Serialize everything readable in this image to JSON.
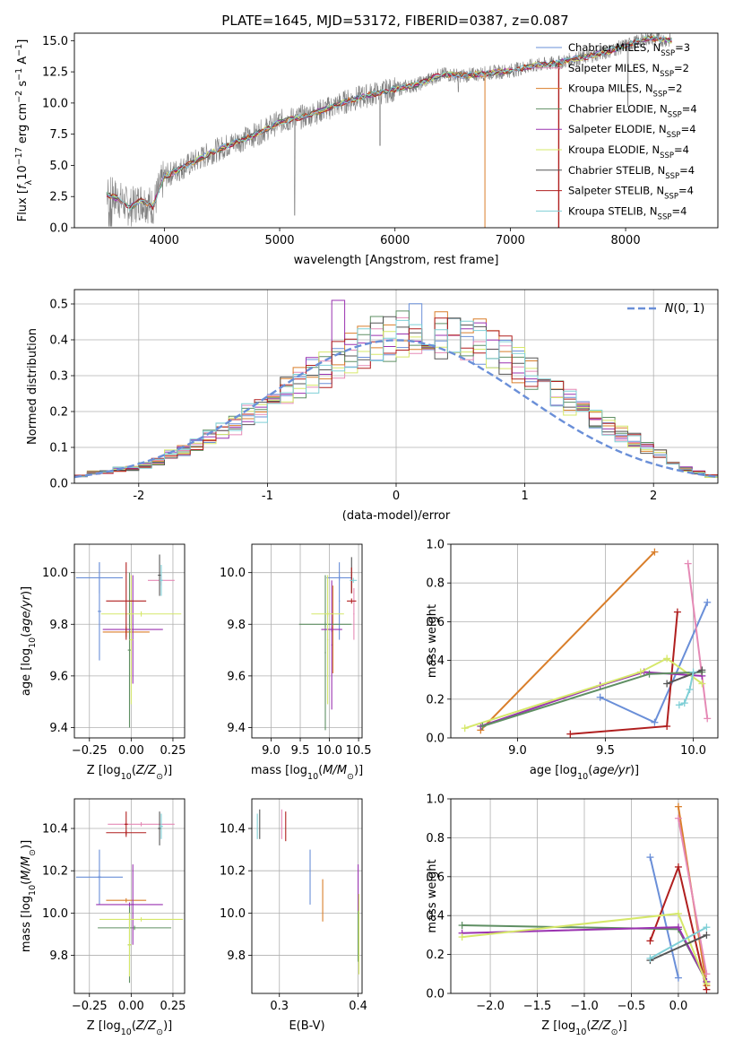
{
  "figure_title": "PLATE=1645, MJD=53172, FIBERID=0387, z=0.087",
  "colors": {
    "Chabrier MILES": "#6a8fd8",
    "Salpeter MILES": "#e58ab6",
    "Kroupa MILES": "#d97e2a",
    "Chabrier ELODIE": "#5f8f63",
    "Salpeter ELODIE": "#9a32b0",
    "Kroupa ELODIE": "#d6e86a",
    "Chabrier STELIB": "#555555",
    "Salpeter STELIB": "#b01f1f",
    "Kroupa STELIB": "#7fcfd6",
    "data": "#808080",
    "gaussian": "#6a8fd8"
  },
  "chart_data": [
    {
      "id": "spectrum",
      "type": "line",
      "title": "PLATE=1645, MJD=53172, FIBERID=0387, z=0.087",
      "xlabel": "wavelength [Angstrom, rest frame]",
      "ylabel": "Flux [f_λ 10^-17 erg cm^-2 s^-1 A^-1]",
      "xlim": [
        3220,
        8800
      ],
      "ylim": [
        0,
        15.6
      ],
      "xticks": [
        4000,
        5000,
        6000,
        7000,
        8000
      ],
      "yticks": [
        0.0,
        2.5,
        5.0,
        7.5,
        10.0,
        12.5,
        15.0
      ],
      "continuum": {
        "x": [
          3500,
          3600,
          3700,
          3800,
          3900,
          4000,
          4200,
          4400,
          4600,
          4800,
          5000,
          5200,
          5400,
          5600,
          5800,
          6000,
          6200,
          6400,
          6600,
          6800,
          7000,
          7200,
          7400,
          7600,
          7800,
          8000,
          8200,
          8400
        ],
        "y": [
          2.7,
          2.3,
          1.6,
          2.2,
          1.7,
          4.1,
          5.0,
          6.0,
          6.8,
          7.5,
          8.5,
          8.9,
          9.5,
          10.2,
          10.7,
          11.1,
          11.5,
          12.3,
          12.2,
          12.4,
          12.6,
          13.0,
          13.2,
          13.6,
          14.0,
          14.6,
          15.2,
          15.0
        ]
      },
      "legend": [
        {
          "label": "Chabrier MILES, N",
          "sub": "SSP",
          "tail": "=3"
        },
        {
          "label": "Salpeter MILES, N",
          "sub": "SSP",
          "tail": "=2"
        },
        {
          "label": "Kroupa MILES, N",
          "sub": "SSP",
          "tail": "=2"
        },
        {
          "label": "Chabrier ELODIE, N",
          "sub": "SSP",
          "tail": "=4"
        },
        {
          "label": "Salpeter ELODIE, N",
          "sub": "SSP",
          "tail": "=4"
        },
        {
          "label": "Kroupa ELODIE, N",
          "sub": "SSP",
          "tail": "=4"
        },
        {
          "label": "Chabrier STELIB, N",
          "sub": "SSP",
          "tail": "=4"
        },
        {
          "label": "Salpeter STELIB, N",
          "sub": "SSP",
          "tail": "=4"
        },
        {
          "label": "Kroupa STELIB, N",
          "sub": "SSP",
          "tail": "=4"
        }
      ]
    },
    {
      "id": "residuals",
      "type": "step",
      "xlabel": "(data-model)/error",
      "ylabel": "Normed distribution",
      "xlim": [
        -2.5,
        2.5
      ],
      "ylim": [
        0,
        0.54
      ],
      "xticks": [
        -2,
        -1,
        0,
        1,
        2
      ],
      "yticks": [
        0.0,
        0.1,
        0.2,
        0.3,
        0.4,
        0.5
      ],
      "bin_width": 0.1,
      "base_hist": [
        0.02,
        0.03,
        0.03,
        0.04,
        0.04,
        0.05,
        0.06,
        0.08,
        0.09,
        0.11,
        0.13,
        0.15,
        0.16,
        0.19,
        0.2,
        0.22,
        0.26,
        0.28,
        0.3,
        0.32,
        0.34,
        0.36,
        0.38,
        0.4,
        0.41,
        0.42,
        0.43,
        0.43,
        0.42,
        0.41,
        0.4,
        0.39,
        0.37,
        0.35,
        0.33,
        0.31,
        0.28,
        0.26,
        0.23,
        0.2,
        0.18,
        0.16,
        0.14,
        0.12,
        0.1,
        0.08,
        0.06,
        0.04,
        0.03,
        0.02
      ],
      "gaussian_label": "N(0,1)"
    },
    {
      "id": "age_vs_Z",
      "type": "errorbar",
      "xlabel": "Z [log10(Z/Z⊙)]",
      "ylabel": "age [log10(age/yr)]",
      "xlim": [
        -0.34,
        0.32
      ],
      "ylim": [
        9.36,
        10.11
      ],
      "xticks": [
        -0.25,
        0.0,
        0.25
      ],
      "xtick_labels": [
        "−0.25",
        "0.00",
        "0.25"
      ],
      "yticks": [
        9.4,
        9.6,
        9.8,
        10.0
      ],
      "points": [
        {
          "model": "Chabrier MILES",
          "x": -0.19,
          "y": 9.98,
          "xerr": 0.14,
          "yerr": 0.06
        },
        {
          "model": "Chabrier MILES",
          "x": -0.19,
          "y": 9.85,
          "xerr": 0.01,
          "yerr": 0.19
        },
        {
          "model": "Salpeter MILES",
          "x": 0.18,
          "y": 9.97,
          "xerr": 0.08,
          "yerr": 0.02
        },
        {
          "model": "Kroupa MILES",
          "x": -0.03,
          "y": 9.77,
          "xerr": 0.14,
          "yerr": 0.02
        },
        {
          "model": "Chabrier ELODIE",
          "x": -0.01,
          "y": 9.7,
          "xerr": 0.01,
          "yerr": 0.3
        },
        {
          "model": "Salpeter ELODIE",
          "x": 0.01,
          "y": 9.78,
          "xerr": 0.18,
          "yerr": 0.21
        },
        {
          "model": "Kroupa ELODIE",
          "x": 0.06,
          "y": 9.84,
          "xerr": 0.24,
          "yerr": 0.01
        },
        {
          "model": "Kroupa ELODIE",
          "x": 0.0,
          "y": 9.74,
          "xerr": 0.01,
          "yerr": 0.25
        },
        {
          "model": "Chabrier STELIB",
          "x": 0.17,
          "y": 9.99,
          "xerr": 0.01,
          "yerr": 0.08
        },
        {
          "model": "Salpeter STELIB",
          "x": -0.03,
          "y": 9.89,
          "xerr": 0.12,
          "yerr": 0.15
        },
        {
          "model": "Kroupa STELIB",
          "x": 0.18,
          "y": 9.97,
          "xerr": 0.01,
          "yerr": 0.06
        }
      ]
    },
    {
      "id": "age_vs_mass",
      "type": "errorbar",
      "xlabel": "mass [log10(M/M⊙)]",
      "ylabel": "",
      "xlim": [
        8.67,
        10.56
      ],
      "ylim": [
        9.36,
        10.11
      ],
      "xticks": [
        9.0,
        9.5,
        10.0,
        10.5
      ],
      "xtick_labels": [
        "9.0",
        "9.5",
        "10.0",
        "10.5"
      ],
      "yticks": [
        9.4,
        9.6,
        9.8,
        10.0
      ],
      "points": [
        {
          "model": "Chabrier MILES",
          "x": 10.17,
          "y": 9.98,
          "xerr": 0.22,
          "yerr": 0.01
        },
        {
          "model": "Chabrier MILES",
          "x": 10.17,
          "y": 9.89,
          "xerr": 0.01,
          "yerr": 0.15
        },
        {
          "model": "Salpeter MILES",
          "x": 10.42,
          "y": 9.84,
          "xerr": 0.01,
          "yerr": 0.1
        },
        {
          "model": "Kroupa MILES",
          "x": 10.06,
          "y": 9.78,
          "xerr": 0.01,
          "yerr": 0.17
        },
        {
          "model": "Chabrier ELODIE",
          "x": 9.93,
          "y": 9.8,
          "xerr": 0.45,
          "yerr": 0.01
        },
        {
          "model": "Chabrier ELODIE",
          "x": 9.93,
          "y": 9.69,
          "xerr": 0.01,
          "yerr": 0.3
        },
        {
          "model": "Salpeter ELODIE",
          "x": 10.04,
          "y": 9.78,
          "xerr": 0.18,
          "yerr": 0.01
        },
        {
          "model": "Salpeter ELODIE",
          "x": 10.04,
          "y": 9.72,
          "xerr": 0.01,
          "yerr": 0.25
        },
        {
          "model": "Kroupa ELODIE",
          "x": 9.97,
          "y": 9.84,
          "xerr": 0.28,
          "yerr": 0.01
        },
        {
          "model": "Kroupa ELODIE",
          "x": 9.97,
          "y": 9.74,
          "xerr": 0.01,
          "yerr": 0.25
        },
        {
          "model": "Chabrier STELIB",
          "x": 10.38,
          "y": 9.99,
          "xerr": 0.01,
          "yerr": 0.07
        },
        {
          "model": "Salpeter STELIB",
          "x": 10.38,
          "y": 9.89,
          "xerr": 0.08,
          "yerr": 0.01
        },
        {
          "model": "Salpeter STELIB",
          "x": 10.38,
          "y": 9.97,
          "xerr": 0.01,
          "yerr": 0.05
        },
        {
          "model": "Kroupa STELIB",
          "x": 10.41,
          "y": 9.97,
          "xerr": 0.06,
          "yerr": 0.01
        }
      ]
    },
    {
      "id": "massweight_vs_age",
      "type": "line",
      "xlabel": "age [log10(age/yr)]",
      "ylabel": "mass weight",
      "xlim": [
        8.62,
        10.14
      ],
      "ylim": [
        0,
        1.0
      ],
      "xticks": [
        9.0,
        9.5,
        10.0
      ],
      "yticks": [
        0.0,
        0.2,
        0.4,
        0.6,
        0.8,
        1.0
      ],
      "series": [
        {
          "model": "Kroupa MILES",
          "x": [
            8.79,
            9.78
          ],
          "y": [
            0.04,
            0.96
          ]
        },
        {
          "model": "Chabrier MILES",
          "x": [
            9.47,
            9.78,
            10.08
          ],
          "y": [
            0.21,
            0.08,
            0.7
          ]
        },
        {
          "model": "Salpeter MILES",
          "x": [
            9.97,
            10.08
          ],
          "y": [
            0.9,
            0.1
          ]
        },
        {
          "model": "Salpeter STELIB",
          "x": [
            9.3,
            9.85,
            9.91
          ],
          "y": [
            0.02,
            0.06,
            0.65
          ]
        },
        {
          "model": "Salpeter ELODIE",
          "x": [
            8.79,
            9.47,
            9.72,
            10.05
          ],
          "y": [
            0.06,
            0.27,
            0.34,
            0.32
          ]
        },
        {
          "model": "Kroupa ELODIE",
          "x": [
            8.7,
            9.7,
            9.85,
            10.05
          ],
          "y": [
            0.05,
            0.34,
            0.41,
            0.28
          ]
        },
        {
          "model": "Chabrier ELODIE",
          "x": [
            8.8,
            9.75,
            10.05
          ],
          "y": [
            0.06,
            0.33,
            0.34
          ]
        },
        {
          "model": "Chabrier STELIB",
          "x": [
            9.85,
            10.05
          ],
          "y": [
            0.28,
            0.35
          ]
        },
        {
          "model": "Kroupa STELIB",
          "x": [
            9.92,
            9.95,
            9.98,
            10.0
          ],
          "y": [
            0.17,
            0.18,
            0.25,
            0.34
          ]
        }
      ]
    },
    {
      "id": "mass_vs_Z",
      "type": "errorbar",
      "xlabel": "Z [log10(Z/Z⊙)]",
      "ylabel": "mass [log10(M/M⊙)]",
      "xlim": [
        -0.34,
        0.32
      ],
      "ylim": [
        9.62,
        10.54
      ],
      "xticks": [
        -0.25,
        0.0,
        0.25
      ],
      "xtick_labels": [
        "−0.25",
        "0.00",
        "0.25"
      ],
      "yticks": [
        9.8,
        10.0,
        10.2,
        10.4
      ],
      "points": [
        {
          "model": "Chabrier MILES",
          "x": -0.19,
          "y": 10.17,
          "xerr": 0.14,
          "yerr": 0.01
        },
        {
          "model": "Chabrier MILES",
          "x": -0.19,
          "y": 10.17,
          "xerr": 0.01,
          "yerr": 0.13
        },
        {
          "model": "Salpeter MILES",
          "x": 0.06,
          "y": 10.42,
          "xerr": 0.2,
          "yerr": 0.01
        },
        {
          "model": "Kroupa MILES",
          "x": -0.03,
          "y": 10.06,
          "xerr": 0.12,
          "yerr": 0.01
        },
        {
          "model": "Chabrier ELODIE",
          "x": 0.02,
          "y": 9.93,
          "xerr": 0.22,
          "yerr": 0.01
        },
        {
          "model": "Chabrier ELODIE",
          "x": -0.01,
          "y": 9.85,
          "xerr": 0.01,
          "yerr": 0.18
        },
        {
          "model": "Salpeter ELODIE",
          "x": -0.01,
          "y": 10.04,
          "xerr": 0.2,
          "yerr": 0.01
        },
        {
          "model": "Salpeter ELODIE",
          "x": 0.01,
          "y": 10.04,
          "xerr": 0.01,
          "yerr": 0.19
        },
        {
          "model": "Kroupa ELODIE",
          "x": 0.06,
          "y": 9.97,
          "xerr": 0.25,
          "yerr": 0.01
        },
        {
          "model": "Kroupa ELODIE",
          "x": -0.01,
          "y": 9.85,
          "xerr": 0.01,
          "yerr": 0.15
        },
        {
          "model": "Chabrier STELIB",
          "x": 0.17,
          "y": 10.4,
          "xerr": 0.01,
          "yerr": 0.08
        },
        {
          "model": "Salpeter STELIB",
          "x": -0.03,
          "y": 10.38,
          "xerr": 0.12,
          "yerr": 0.01
        },
        {
          "model": "Salpeter STELIB",
          "x": -0.03,
          "y": 10.42,
          "xerr": 0.01,
          "yerr": 0.06
        },
        {
          "model": "Kroupa STELIB",
          "x": 0.18,
          "y": 10.41,
          "xerr": 0.01,
          "yerr": 0.06
        }
      ]
    },
    {
      "id": "mass_vs_ebv",
      "type": "errorbar",
      "xlabel": "E(B-V)",
      "ylabel": "",
      "xlim": [
        0.265,
        0.405
      ],
      "ylim": [
        9.62,
        10.54
      ],
      "xticks": [
        0.3,
        0.4
      ],
      "xtick_labels": [
        "0.3",
        "0.4"
      ],
      "yticks": [
        9.8,
        10.0,
        10.2,
        10.4
      ],
      "points": [
        {
          "model": "Chabrier MILES",
          "x": 0.339,
          "y": 10.17,
          "xerr": 0.0,
          "yerr": 0.13
        },
        {
          "model": "Salpeter MILES",
          "x": 0.303,
          "y": 10.42,
          "xerr": 0.0,
          "yerr": 0.07
        },
        {
          "model": "Kroupa MILES",
          "x": 0.355,
          "y": 10.06,
          "xerr": 0.0,
          "yerr": 0.1
        },
        {
          "model": "Chabrier ELODIE",
          "x": 0.4,
          "y": 9.93,
          "xerr": 0.0,
          "yerr": 0.16
        },
        {
          "model": "Salpeter ELODIE",
          "x": 0.4,
          "y": 10.12,
          "xerr": 0.0,
          "yerr": 0.11
        },
        {
          "model": "Kroupa ELODIE",
          "x": 0.401,
          "y": 9.9,
          "xerr": 0.0,
          "yerr": 0.19
        },
        {
          "model": "Chabrier STELIB",
          "x": 0.275,
          "y": 10.42,
          "xerr": 0.0,
          "yerr": 0.07
        },
        {
          "model": "Salpeter STELIB",
          "x": 0.308,
          "y": 10.41,
          "xerr": 0.0,
          "yerr": 0.07
        },
        {
          "model": "Kroupa STELIB",
          "x": 0.272,
          "y": 10.41,
          "xerr": 0.0,
          "yerr": 0.06
        }
      ]
    },
    {
      "id": "massweight_vs_Z",
      "type": "line",
      "xlabel": "Z [log10(Z/Z⊙)]",
      "ylabel": "mass weight",
      "xlim": [
        -2.42,
        0.42
      ],
      "ylim": [
        0,
        1.0
      ],
      "xticks": [
        -2.0,
        -1.5,
        -1.0,
        -0.5,
        0.0
      ],
      "xtick_labels": [
        "−2.0",
        "−1.5",
        "−1.0",
        "−0.5",
        "0.0"
      ],
      "yticks": [
        0.0,
        0.2,
        0.4,
        0.6,
        0.8,
        1.0
      ],
      "series": [
        {
          "model": "Kroupa MILES",
          "x": [
            0.0,
            0.3
          ],
          "y": [
            0.96,
            0.04
          ]
        },
        {
          "model": "Chabrier MILES",
          "x": [
            -0.3,
            0.0
          ],
          "y": [
            0.7,
            0.08
          ]
        },
        {
          "model": "Salpeter MILES",
          "x": [
            0.0,
            0.3
          ],
          "y": [
            0.9,
            0.1
          ]
        },
        {
          "model": "Salpeter STELIB",
          "x": [
            -0.3,
            0.0,
            0.3
          ],
          "y": [
            0.27,
            0.65,
            0.02
          ]
        },
        {
          "model": "Chabrier ELODIE",
          "x": [
            -2.3,
            0.0,
            0.3
          ],
          "y": [
            0.35,
            0.33,
            0.06
          ]
        },
        {
          "model": "Salpeter ELODIE",
          "x": [
            -2.3,
            0.0,
            0.3
          ],
          "y": [
            0.31,
            0.34,
            0.06
          ]
        },
        {
          "model": "Kroupa ELODIE",
          "x": [
            -2.3,
            0.0,
            0.3
          ],
          "y": [
            0.29,
            0.41,
            0.05
          ]
        },
        {
          "model": "Chabrier STELIB",
          "x": [
            -0.3,
            0.3
          ],
          "y": [
            0.17,
            0.3
          ]
        },
        {
          "model": "Kroupa STELIB",
          "x": [
            -0.3,
            0.3
          ],
          "y": [
            0.18,
            0.34
          ]
        }
      ]
    }
  ]
}
